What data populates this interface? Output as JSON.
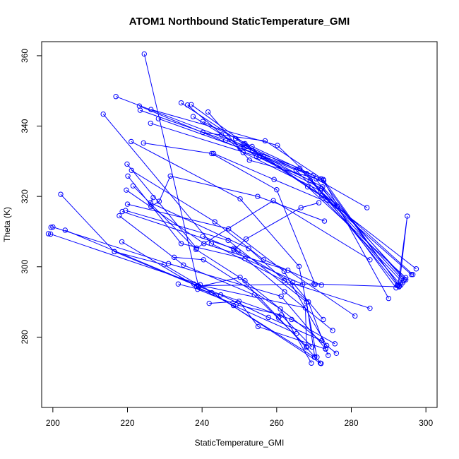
{
  "chart_data": {
    "type": "line",
    "title": "ATOM1 Northbound StaticTemperature_GMI",
    "xlabel": "StaticTemperature_GMI",
    "ylabel": "Theta (K)",
    "xlim": [
      197,
      303
    ],
    "ylim": [
      260,
      364
    ],
    "xticks": [
      200,
      220,
      240,
      260,
      280,
      300
    ],
    "yticks": [
      280,
      300,
      320,
      340,
      360
    ],
    "grid": false,
    "legend": "none",
    "marker": "open-circle",
    "color": "#0000ff",
    "series": [
      {
        "x": [
          224.5,
          239.0,
          270.0,
          292.8,
          295.0,
          292.5
        ],
        "y": [
          360.5,
          294.6,
          295.1,
          294.3,
          314.4,
          294.6
        ]
      },
      {
        "x": [
          216.9,
          252.0,
          273.5,
          296.1
        ],
        "y": [
          348.4,
          334.2,
          319.0,
          297.8
        ]
      },
      {
        "x": [
          223.2,
          250.2,
          265.2,
          293.8
        ],
        "y": [
          345.7,
          333.7,
          327.5,
          295.5
        ]
      },
      {
        "x": [
          223.4,
          246.3,
          266.2,
          294.0
        ],
        "y": [
          344.5,
          336.0,
          328.0,
          296.0
        ]
      },
      {
        "x": [
          226.3,
          260.2,
          268.0,
          292.3
        ],
        "y": [
          344.7,
          334.5,
          326.5,
          294.8
        ]
      },
      {
        "x": [
          234.4,
          249.0,
          268.3,
          294.6
        ],
        "y": [
          346.6,
          336.4,
          322.7,
          296.9
        ]
      },
      {
        "x": [
          236.1,
          251.0,
          271.7,
          296.5
        ],
        "y": [
          346.0,
          332.5,
          321.6,
          297.8
        ]
      },
      {
        "x": [
          237.1,
          251.5,
          272.1,
          297.4
        ],
        "y": [
          346.1,
          335.0,
          320.2,
          299.4
        ]
      },
      {
        "x": [
          241.6,
          252.7,
          272.6,
          290.0
        ],
        "y": [
          344.0,
          330.3,
          324.5,
          291.0
        ]
      },
      {
        "x": [
          213.5,
          242.5,
          262.0,
          285.0
        ],
        "y": [
          343.4,
          306.6,
          296.0,
          288.2
        ]
      },
      {
        "x": [
          228.3,
          256.5,
          269.8,
          292.0
        ],
        "y": [
          342.1,
          331.4,
          326.0,
          294.0
        ]
      },
      {
        "x": [
          237.6,
          254.6,
          272.0,
          294.6
        ],
        "y": [
          342.7,
          331.4,
          322.3,
          296.3
        ]
      },
      {
        "x": [
          240.2,
          253.4,
          271.9,
          292.9
        ],
        "y": [
          341.3,
          334.2,
          325.0,
          294.5
        ]
      },
      {
        "x": [
          226.2,
          255.3,
          269.0,
          293.3
        ],
        "y": [
          340.8,
          331.2,
          324.6,
          294.8
        ]
      },
      {
        "x": [
          240.2,
          256.9,
          272.5,
          292.6
        ],
        "y": [
          338.2,
          335.8,
          324.8,
          294.8
        ]
      },
      {
        "x": [
          245.2,
          253.5,
          272.3,
          294.2
        ],
        "y": [
          337.5,
          333.0,
          322.7,
          296.3
        ]
      },
      {
        "x": [
          221.0,
          250.2,
          266.0,
          270.8
        ],
        "y": [
          335.6,
          319.3,
          300.1,
          274.3
        ]
      },
      {
        "x": [
          224.3,
          242.6,
          260.0,
          270.3
        ],
        "y": [
          335.2,
          332.2,
          321.9,
          295.0
        ]
      },
      {
        "x": [
          251.1,
          270.6,
          284.2
        ],
        "y": [
          334.9,
          325.0,
          316.8
        ]
      },
      {
        "x": [
          243.1,
          259.3,
          276.2
        ],
        "y": [
          332.2,
          324.8,
          317.2
        ]
      },
      {
        "x": [
          219.9,
          238.5,
          259.1,
          285.0
        ],
        "y": [
          329.2,
          305.3,
          318.8,
          302.0
        ]
      },
      {
        "x": [
          221.1,
          243.4,
          256.5,
          272.0
        ],
        "y": [
          327.4,
          312.8,
          302.0,
          294.8
        ]
      },
      {
        "x": [
          220.1,
          234.4,
          251.5,
          267.0
        ],
        "y": [
          325.8,
          306.6,
          302.3,
          295.0
        ]
      },
      {
        "x": [
          226.3,
          228.5,
          231.5,
          254.9,
          272.8
        ],
        "y": [
          317.1,
          318.6,
          325.8,
          320.0,
          313.0
        ]
      },
      {
        "x": [
          219.7,
          240.5,
          263.0,
          281.0
        ],
        "y": [
          321.8,
          306.6,
          299.0,
          286.0
        ]
      },
      {
        "x": [
          226.9,
          226.2,
          252.5,
          268.5,
          273.8
        ],
        "y": [
          319.7,
          318.2,
          305.2,
          290.0,
          274.8
        ]
      },
      {
        "x": [
          202.1,
          216.5,
          239.0,
          264.0,
          275.6
        ],
        "y": [
          320.6,
          304.3,
          294.4,
          285.0,
          278.1
        ]
      },
      {
        "x": [
          221.5,
          238.4,
          251.5,
          276.0
        ],
        "y": [
          323.0,
          304.9,
          296.0,
          275.4
        ]
      },
      {
        "x": [
          220.0,
          247.1,
          262.0,
          273.4
        ],
        "y": [
          317.8,
          310.8,
          298.7,
          277.6
        ]
      },
      {
        "x": [
          218.6,
          248.5,
          262.1,
          275.0
        ],
        "y": [
          315.7,
          305.2,
          292.9,
          281.9
        ]
      },
      {
        "x": [
          217.8,
          235.0,
          254.0,
          268.0
        ],
        "y": [
          314.5,
          300.5,
          292.0,
          277.4
        ]
      },
      {
        "x": [
          219.5,
          247.0,
          268.0,
          270.2
        ],
        "y": [
          316.0,
          307.5,
          290.0,
          274.4
        ]
      },
      {
        "x": [
          199.5,
          200.0,
          231.0,
          261.2,
          273.1
        ],
        "y": [
          311.2,
          311.3,
          300.9,
          291.6,
          276.7
        ]
      },
      {
        "x": [
          198.8,
          199.4,
          239.5,
          271.7
        ],
        "y": [
          309.4,
          309.3,
          294.9,
          272.6
        ]
      },
      {
        "x": [
          203.3,
          237.8,
          267.7,
          268.0
        ],
        "y": [
          310.4,
          295.1,
          288.3,
          277.0
        ]
      },
      {
        "x": [
          218.5,
          238.5,
          248.4,
          265.3
        ],
        "y": [
          307.1,
          294.4,
          289.0,
          281.0
        ]
      },
      {
        "x": [
          216.5,
          229.8,
          242.6,
          270.1
        ],
        "y": [
          304.3,
          300.6,
          292.6,
          274.3
        ]
      },
      {
        "x": [
          232.5,
          240.4,
          261.0,
          269.3
        ],
        "y": [
          302.7,
          302.0,
          288.0,
          272.6
        ]
      },
      {
        "x": [
          233.6,
          245.0,
          257.8,
          272.1
        ],
        "y": [
          295.1,
          292.0,
          285.6,
          279.0
        ]
      },
      {
        "x": [
          239.0,
          250.2,
          260.5,
          271.9
        ],
        "y": [
          294.3,
          297.0,
          285.5,
          272.5
        ]
      },
      {
        "x": [
          241.9,
          249.9,
          255.0,
          273.1
        ],
        "y": [
          289.6,
          290.2,
          283.0,
          276.6
        ]
      },
      {
        "x": [
          238.8,
          249.1,
          261.2,
          269.5
        ],
        "y": [
          293.6,
          289.2,
          286.3,
          277.2
        ]
      },
      {
        "x": [
          240.2,
          249.6,
          264.3,
          272.5
        ],
        "y": [
          308.7,
          304.5,
          295.5,
          285.0
        ]
      },
      {
        "x": [
          248.5,
          251.8,
          266.5,
          271.3
        ],
        "y": [
          304.8,
          307.9,
          316.8,
          318.2
        ]
      }
    ]
  }
}
